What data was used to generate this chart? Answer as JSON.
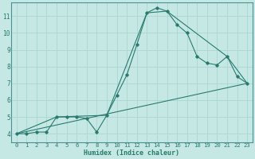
{
  "xlabel": "Humidex (Indice chaleur)",
  "ylabel": "",
  "background_color": "#c5e8e5",
  "grid_color": "#aed8d5",
  "line_color": "#2a7a6e",
  "xlim": [
    -0.5,
    23.5
  ],
  "ylim": [
    3.5,
    11.8
  ],
  "xticks": [
    0,
    1,
    2,
    3,
    4,
    5,
    6,
    7,
    8,
    9,
    10,
    11,
    12,
    13,
    14,
    15,
    16,
    17,
    18,
    19,
    20,
    21,
    22,
    23
  ],
  "yticks": [
    4,
    5,
    6,
    7,
    8,
    9,
    10,
    11
  ],
  "line1_x": [
    0,
    1,
    2,
    3,
    4,
    5,
    6,
    7,
    8,
    9,
    10,
    11,
    12,
    13,
    14,
    15,
    16,
    17,
    18,
    19,
    20,
    21,
    22,
    23
  ],
  "line1_y": [
    4.0,
    4.0,
    4.1,
    4.1,
    5.0,
    5.0,
    5.0,
    4.9,
    4.1,
    5.1,
    6.3,
    7.5,
    9.3,
    11.2,
    11.5,
    11.3,
    10.5,
    10.0,
    8.6,
    8.2,
    8.1,
    8.6,
    7.4,
    7.0
  ],
  "line2_x": [
    0,
    4,
    9,
    13,
    15,
    21,
    23
  ],
  "line2_y": [
    4.0,
    5.0,
    5.1,
    11.2,
    11.3,
    8.6,
    7.0
  ],
  "line3_x": [
    0,
    23
  ],
  "line3_y": [
    4.0,
    7.0
  ],
  "xlabel_fontsize": 6.0,
  "tick_fontsize": 5.2
}
